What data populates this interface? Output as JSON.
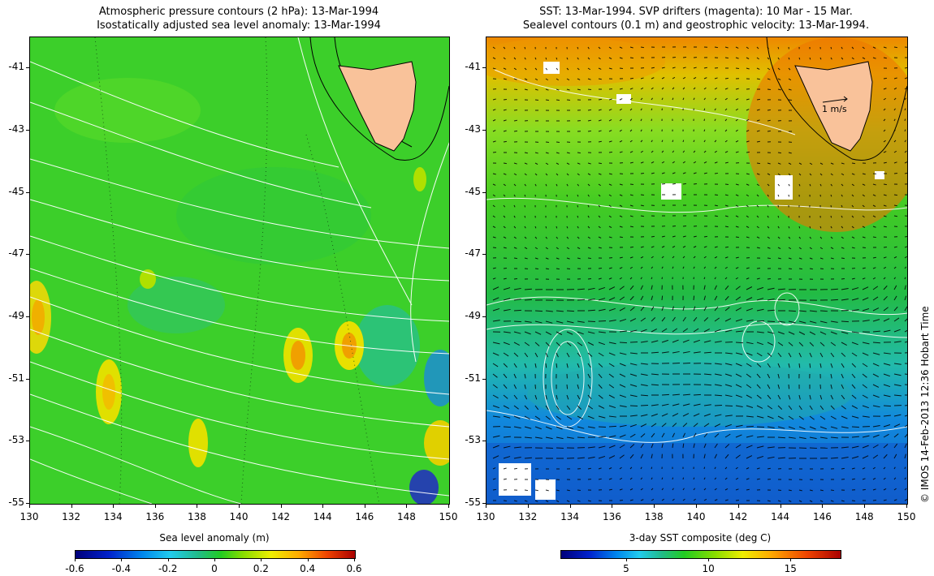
{
  "left_panel": {
    "title_line1": "Atmospheric pressure contours (2 hPa): 13-Mar-1994",
    "title_line2": "Isostatically adjusted sea level anomaly: 13-Mar-1994",
    "colorbar_label": "Sea level anomaly (m)",
    "colorbar_ticks": [
      "-0.6",
      "-0.4",
      "-0.2",
      "0",
      "0.2",
      "0.4",
      "0.6"
    ]
  },
  "right_panel": {
    "title_line1": "SST: 13-Mar-1994. SVP drifters (magenta): 10 Mar - 15 Mar.",
    "title_line2": "Sealevel contours (0.1 m) and geostrophic velocity: 13-Mar-1994.",
    "colorbar_label": "3-day SST composite (deg C)",
    "colorbar_ticks": [
      "5",
      "10",
      "15"
    ],
    "scale_arrow_label": "1 m/s"
  },
  "y_ticks": [
    "-41",
    "-43",
    "-45",
    "-47",
    "-49",
    "-51",
    "-53",
    "-55"
  ],
  "x_ticks": [
    "130",
    "132",
    "134",
    "136",
    "138",
    "140",
    "142",
    "144",
    "146",
    "148",
    "150"
  ],
  "credit": "© IMOS 14-Feb-2013 12:36 Hobart Time",
  "colors": {
    "land": "#f9c29a",
    "ocean_mid": "#22cc22",
    "ocean_south": "#0088ee",
    "ocean_north": "#ee8800"
  }
}
